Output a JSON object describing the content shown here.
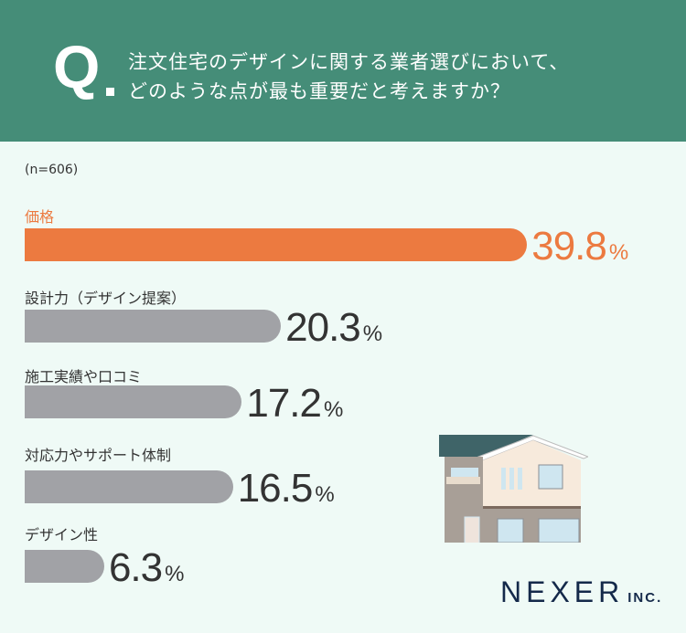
{
  "header": {
    "q_mark": "Q",
    "question_line1": "注文住宅のデザインに関する業者選びにおいて、",
    "question_line2": "どのような点が最も重要だと考えますか？"
  },
  "sample": "(n=606)",
  "colors": {
    "header": "#458d78",
    "highlight": "#ec7a40",
    "bar": "#a1a2a6",
    "background": "#effaf6"
  },
  "chart_data": {
    "type": "bar",
    "orientation": "horizontal",
    "categories": [
      "価格",
      "設計力（デザイン提案）",
      "施工実績や口コミ",
      "対応力やサポート体制",
      "デザイン性"
    ],
    "values": [
      39.8,
      20.3,
      17.2,
      16.5,
      6.3
    ],
    "value_labels": [
      "39.8",
      "20.3",
      "17.2",
      "16.5",
      "6.3"
    ],
    "unit": "%"
  },
  "logo": {
    "name": "NEXER",
    "suffix": "INC."
  }
}
